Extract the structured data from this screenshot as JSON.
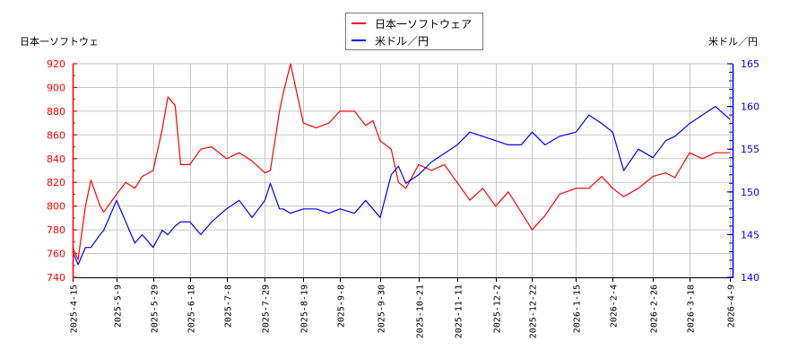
{
  "chart_data": {
    "type": "line",
    "title": "",
    "legend": {
      "position": "top-center",
      "entries": [
        {
          "name": "日本一ソフトウェア",
          "color": "#ff0000"
        },
        {
          "name": "米ドル／円",
          "color": "#0000ff"
        }
      ]
    },
    "left_axis": {
      "label": "日本一ソフトウェ",
      "color": "#ff0000",
      "ticks": [
        740,
        760,
        780,
        800,
        820,
        840,
        860,
        880,
        900,
        920
      ],
      "ylim": [
        740,
        920
      ]
    },
    "right_axis": {
      "label": "米ドル／円",
      "color": "#0000ff",
      "ticks": [
        140,
        145,
        150,
        155,
        160,
        165
      ],
      "ylim": [
        140,
        165
      ]
    },
    "x_ticks": [
      "2025-4-15",
      "2025-5-9",
      "2025-5-29",
      "2025-6-18",
      "2025-7-8",
      "2025-7-29",
      "2025-8-19",
      "2025-9-8",
      "2025-9-30",
      "2025-10-21",
      "2025-11-11",
      "2025-12-2",
      "2025-12-22",
      "2026-1-15",
      "2026-2-4",
      "2026-2-26",
      "2026-3-18",
      "2026-4-9"
    ],
    "grid": true,
    "series": [
      {
        "name": "日本一ソフトウェア",
        "axis": "left",
        "color": "#ff0000",
        "x": [
          "2025-4-15",
          "2025-4-18",
          "2025-4-22",
          "2025-4-25",
          "2025-4-30",
          "2025-5-2",
          "2025-5-9",
          "2025-5-14",
          "2025-5-19",
          "2025-5-23",
          "2025-5-29",
          "2025-6-3",
          "2025-6-6",
          "2025-6-10",
          "2025-6-13",
          "2025-6-18",
          "2025-6-24",
          "2025-6-30",
          "2025-7-8",
          "2025-7-15",
          "2025-7-22",
          "2025-7-29",
          "2025-8-1",
          "2025-8-6",
          "2025-8-8",
          "2025-8-12",
          "2025-8-19",
          "2025-8-26",
          "2025-9-2",
          "2025-9-8",
          "2025-9-16",
          "2025-9-22",
          "2025-9-26",
          "2025-9-30",
          "2025-10-6",
          "2025-10-10",
          "2025-10-14",
          "2025-10-21",
          "2025-10-28",
          "2025-11-4",
          "2025-11-11",
          "2025-11-18",
          "2025-11-25",
          "2025-12-2",
          "2025-12-9",
          "2025-12-16",
          "2025-12-22",
          "2025-12-29",
          "2026-1-6",
          "2026-1-15",
          "2026-1-22",
          "2026-1-29",
          "2026-2-4",
          "2026-2-10",
          "2026-2-18",
          "2026-2-26",
          "2026-3-5",
          "2026-3-10",
          "2026-3-18",
          "2026-3-25",
          "2026-4-1",
          "2026-4-9"
        ],
        "values": [
          765,
          755,
          800,
          822,
          800,
          795,
          810,
          820,
          815,
          825,
          830,
          865,
          892,
          885,
          835,
          835,
          848,
          850,
          840,
          845,
          838,
          828,
          830,
          880,
          895,
          920,
          870,
          866,
          870,
          880,
          880,
          868,
          872,
          855,
          848,
          820,
          815,
          835,
          830,
          835,
          820,
          805,
          815,
          800,
          812,
          795,
          780,
          792,
          810,
          815,
          815,
          825,
          815,
          808,
          815,
          825,
          828,
          824,
          845,
          840,
          845,
          845
        ]
      },
      {
        "name": "米ドル／円",
        "axis": "right",
        "color": "#0000ff",
        "x": [
          "2025-4-15",
          "2025-4-18",
          "2025-4-22",
          "2025-4-25",
          "2025-4-30",
          "2025-5-2",
          "2025-5-9",
          "2025-5-14",
          "2025-5-19",
          "2025-5-23",
          "2025-5-29",
          "2025-6-3",
          "2025-6-6",
          "2025-6-10",
          "2025-6-13",
          "2025-6-18",
          "2025-6-24",
          "2025-6-30",
          "2025-7-8",
          "2025-7-15",
          "2025-7-22",
          "2025-7-29",
          "2025-8-1",
          "2025-8-6",
          "2025-8-8",
          "2025-8-12",
          "2025-8-19",
          "2025-8-26",
          "2025-9-2",
          "2025-9-8",
          "2025-9-16",
          "2025-9-22",
          "2025-9-26",
          "2025-9-30",
          "2025-10-6",
          "2025-10-10",
          "2025-10-14",
          "2025-10-21",
          "2025-10-28",
          "2025-11-4",
          "2025-11-11",
          "2025-11-18",
          "2025-11-25",
          "2025-12-2",
          "2025-12-9",
          "2025-12-16",
          "2025-12-22",
          "2025-12-29",
          "2026-1-6",
          "2026-1-15",
          "2026-1-22",
          "2026-1-29",
          "2026-2-4",
          "2026-2-10",
          "2026-2-18",
          "2026-2-26",
          "2026-3-5",
          "2026-3-10",
          "2026-3-18",
          "2026-3-25",
          "2026-4-1",
          "2026-4-9"
        ],
        "values": [
          143,
          141.5,
          143.5,
          143.5,
          145,
          145.5,
          149,
          146.5,
          144,
          145,
          143.5,
          145.5,
          145,
          146,
          146.5,
          146.5,
          145,
          146.5,
          148,
          149,
          147,
          149,
          151,
          148,
          148,
          147.5,
          148,
          148,
          147.5,
          148,
          147.5,
          149,
          148,
          147,
          152,
          153,
          151,
          152,
          153.5,
          154.5,
          155.5,
          157,
          156.5,
          156,
          155.5,
          155.5,
          157,
          155.5,
          156.5,
          157,
          159,
          158,
          157,
          152.5,
          155,
          154,
          156,
          156.5,
          158,
          159,
          160,
          158.5
        ]
      }
    ]
  }
}
